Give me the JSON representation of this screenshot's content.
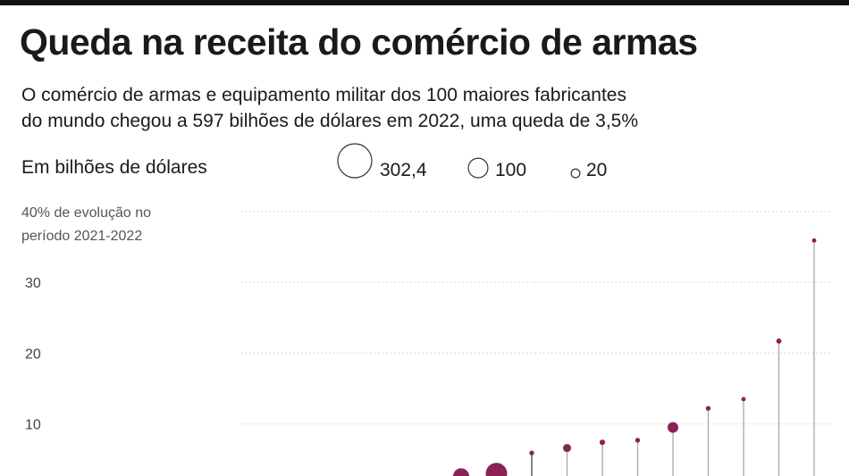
{
  "title": "Queda na receita do comércio de armas",
  "subtitle_line1": "O comércio de armas e equipamento militar dos 100 maiores fabricantes",
  "subtitle_line2": "do mundo chegou a 597 bilhões de dólares em 2022, uma queda de 3,5%",
  "chart_data": {
    "type": "scatter",
    "unit_label": "Em bilhões de dólares",
    "ylabel_line1": "40% de evolução no",
    "ylabel_line2": "período 2021-2022",
    "y_ticks": [
      "30",
      "20",
      "10"
    ],
    "y_tick_values": [
      30,
      20,
      10
    ],
    "gridlines": [
      40,
      30,
      20,
      10
    ],
    "ylim": [
      0,
      40
    ],
    "size_legend": [
      {
        "label": "302,4",
        "value": 302.4
      },
      {
        "label": "100",
        "value": 100
      },
      {
        "label": "20",
        "value": 20
      }
    ],
    "points": [
      {
        "evolution": 2.6,
        "revenue": 68
      },
      {
        "evolution": 3.0,
        "revenue": 120
      },
      {
        "evolution": 5.9,
        "revenue": 6
      },
      {
        "evolution": 6.6,
        "revenue": 17
      },
      {
        "evolution": 7.4,
        "revenue": 8
      },
      {
        "evolution": 7.7,
        "revenue": 6
      },
      {
        "evolution": 9.5,
        "revenue": 30
      },
      {
        "evolution": 12.2,
        "revenue": 6
      },
      {
        "evolution": 13.5,
        "revenue": 5
      },
      {
        "evolution": 21.7,
        "revenue": 7
      },
      {
        "evolution": 35.9,
        "revenue": 5
      }
    ],
    "colors": {
      "dot": "#8b2257",
      "stem": "#a8a8a8",
      "grid": "#cccccc"
    }
  }
}
